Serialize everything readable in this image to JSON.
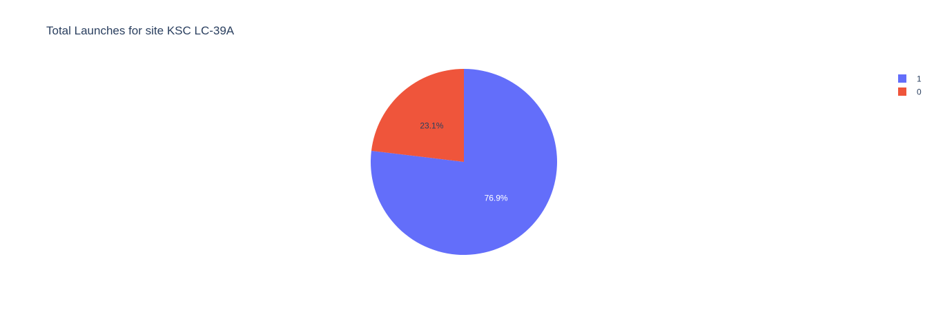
{
  "chart_data": {
    "type": "pie",
    "title": "Total Launches for site KSC LC-39A",
    "slices": [
      {
        "label": "1",
        "percent": 76.9,
        "percent_label": "76.9%",
        "color": "#636efa",
        "label_color": "#ffffff"
      },
      {
        "label": "0",
        "percent": 23.1,
        "percent_label": "23.1%",
        "color": "#ef553b",
        "label_color": "#2a3f5f"
      }
    ],
    "legend": {
      "placement": "top-right",
      "entries": [
        "1",
        "0"
      ]
    },
    "sort": "descending",
    "direction": "clockwise",
    "start": "top"
  }
}
